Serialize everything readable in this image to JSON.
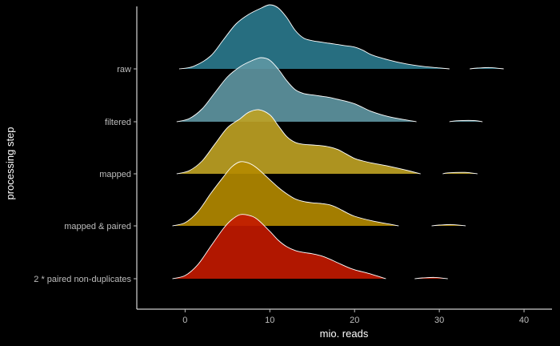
{
  "chart_data": {
    "type": "ridgeline",
    "xlabel": "mio. reads",
    "ylabel": "processing step",
    "xlim": [
      -5.7,
      43.3
    ],
    "x_ticks": [
      0,
      10,
      20,
      30,
      40
    ],
    "x_tick_labels": [
      "0",
      "10",
      "20",
      "30",
      "40"
    ],
    "grid": false,
    "series": [
      {
        "name": "raw",
        "color": "#2b7a8e",
        "points": [
          [
            -0.7,
            0
          ],
          [
            1,
            0.04
          ],
          [
            3,
            0.2
          ],
          [
            4.5,
            0.45
          ],
          [
            6,
            0.7
          ],
          [
            7.5,
            0.85
          ],
          [
            9,
            0.95
          ],
          [
            10,
            1.0
          ],
          [
            11,
            0.95
          ],
          [
            12,
            0.8
          ],
          [
            13,
            0.6
          ],
          [
            14,
            0.48
          ],
          [
            15,
            0.44
          ],
          [
            16,
            0.42
          ],
          [
            17,
            0.4
          ],
          [
            18,
            0.38
          ],
          [
            19,
            0.36
          ],
          [
            20,
            0.34
          ],
          [
            21,
            0.29
          ],
          [
            22,
            0.22
          ],
          [
            24,
            0.14
          ],
          [
            26,
            0.08
          ],
          [
            28,
            0.04
          ],
          [
            30,
            0.015
          ],
          [
            31.2,
            0
          ]
        ],
        "tail": [
          [
            33.6,
            0
          ],
          [
            34.5,
            0.012
          ],
          [
            36,
            0.02
          ],
          [
            37.6,
            0
          ]
        ]
      },
      {
        "name": "filtered",
        "color": "#5f97a3",
        "points": [
          [
            -1,
            0
          ],
          [
            0.5,
            0.05
          ],
          [
            2,
            0.2
          ],
          [
            3.5,
            0.45
          ],
          [
            5,
            0.7
          ],
          [
            6.5,
            0.86
          ],
          [
            8,
            0.96
          ],
          [
            9,
            1.0
          ],
          [
            10,
            0.96
          ],
          [
            11,
            0.82
          ],
          [
            12,
            0.64
          ],
          [
            13,
            0.5
          ],
          [
            14,
            0.44
          ],
          [
            15,
            0.42
          ],
          [
            16,
            0.4
          ],
          [
            17,
            0.38
          ],
          [
            18,
            0.35
          ],
          [
            19,
            0.32
          ],
          [
            20,
            0.28
          ],
          [
            21,
            0.22
          ],
          [
            22,
            0.16
          ],
          [
            24,
            0.08
          ],
          [
            26,
            0.03
          ],
          [
            27.3,
            0
          ]
        ],
        "tail": [
          [
            31.2,
            0
          ],
          [
            32,
            0.015
          ],
          [
            34,
            0.02
          ],
          [
            35.1,
            0
          ]
        ]
      },
      {
        "name": "mapped",
        "color": "#c0a324",
        "points": [
          [
            -1,
            0
          ],
          [
            0.5,
            0.05
          ],
          [
            2,
            0.2
          ],
          [
            3.5,
            0.46
          ],
          [
            5,
            0.72
          ],
          [
            6.5,
            0.86
          ],
          [
            7.5,
            0.96
          ],
          [
            8.7,
            1.0
          ],
          [
            10,
            0.92
          ],
          [
            11,
            0.75
          ],
          [
            12,
            0.58
          ],
          [
            13,
            0.49
          ],
          [
            14,
            0.46
          ],
          [
            15,
            0.45
          ],
          [
            16,
            0.44
          ],
          [
            17,
            0.42
          ],
          [
            18,
            0.38
          ],
          [
            19,
            0.31
          ],
          [
            20,
            0.24
          ],
          [
            21,
            0.2
          ],
          [
            22,
            0.17
          ],
          [
            24,
            0.12
          ],
          [
            26,
            0.06
          ],
          [
            27.8,
            0
          ]
        ],
        "tail": [
          [
            30.4,
            0
          ],
          [
            31,
            0.015
          ],
          [
            33,
            0.022
          ],
          [
            34.5,
            0
          ]
        ]
      },
      {
        "name": "mapped & paired",
        "color": "#b58b00",
        "points": [
          [
            -1.5,
            0
          ],
          [
            0,
            0.05
          ],
          [
            1.5,
            0.22
          ],
          [
            3,
            0.5
          ],
          [
            4.5,
            0.76
          ],
          [
            5.5,
            0.92
          ],
          [
            6.5,
            1.0
          ],
          [
            7.5,
            0.98
          ],
          [
            8.5,
            0.9
          ],
          [
            10,
            0.72
          ],
          [
            11,
            0.6
          ],
          [
            12,
            0.5
          ],
          [
            13,
            0.42
          ],
          [
            14,
            0.38
          ],
          [
            15,
            0.36
          ],
          [
            16,
            0.35
          ],
          [
            17,
            0.33
          ],
          [
            18,
            0.28
          ],
          [
            19,
            0.21
          ],
          [
            20,
            0.15
          ],
          [
            22,
            0.08
          ],
          [
            24,
            0.03
          ],
          [
            25.2,
            0
          ]
        ],
        "tail": [
          [
            29.1,
            0
          ],
          [
            30,
            0.012
          ],
          [
            31.5,
            0.02
          ],
          [
            33.1,
            0
          ]
        ]
      },
      {
        "name": "2 * paired non-duplicates",
        "color": "#c41a00",
        "points": [
          [
            -1.5,
            0
          ],
          [
            0,
            0.05
          ],
          [
            1.5,
            0.22
          ],
          [
            3,
            0.5
          ],
          [
            4.5,
            0.78
          ],
          [
            5.5,
            0.92
          ],
          [
            6.5,
            1.0
          ],
          [
            7.5,
            0.99
          ],
          [
            8.5,
            0.93
          ],
          [
            10,
            0.74
          ],
          [
            11,
            0.6
          ],
          [
            12,
            0.5
          ],
          [
            13,
            0.44
          ],
          [
            14,
            0.41
          ],
          [
            15,
            0.39
          ],
          [
            16,
            0.36
          ],
          [
            17,
            0.31
          ],
          [
            18,
            0.25
          ],
          [
            19,
            0.19
          ],
          [
            20,
            0.14
          ],
          [
            22,
            0.07
          ],
          [
            23.7,
            0
          ]
        ],
        "tail": [
          [
            27.1,
            0
          ],
          [
            28,
            0.012
          ],
          [
            29.5,
            0.02
          ],
          [
            31,
            0
          ]
        ]
      }
    ]
  }
}
